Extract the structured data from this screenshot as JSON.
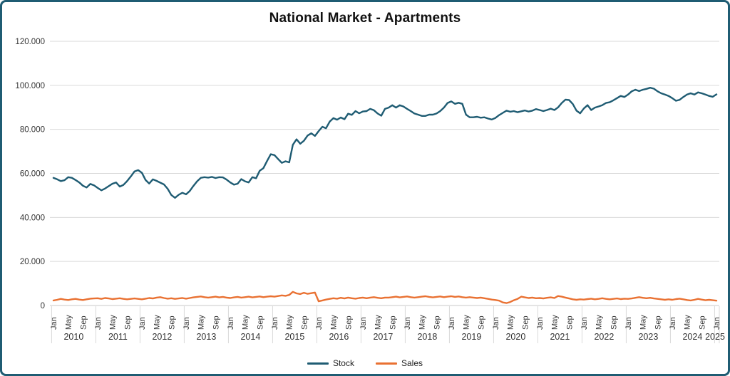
{
  "chart_data": {
    "type": "line",
    "title": "National Market - Apartments",
    "xlabel": "",
    "ylabel": "",
    "ylim": [
      0,
      120000
    ],
    "grid": true,
    "legend_position": "bottom",
    "x_axis": {
      "start": "Jan 2010",
      "end": "Jan 2025",
      "tick_months": [
        "Jan",
        "May",
        "Sep"
      ],
      "months_per_tick": 4,
      "final_tick": "Jan"
    },
    "years": [
      "2010",
      "2011",
      "2012",
      "2013",
      "2014",
      "2015",
      "2016",
      "2017",
      "2018",
      "2019",
      "2020",
      "2021",
      "2022",
      "2023",
      "2024",
      "2025"
    ],
    "y_ticks": [
      {
        "value": 0,
        "label": "0"
      },
      {
        "value": 20000,
        "label": "20.000"
      },
      {
        "value": 40000,
        "label": "40.000"
      },
      {
        "value": 60000,
        "label": "60.000"
      },
      {
        "value": 80000,
        "label": "80.000"
      },
      {
        "value": 100000,
        "label": "100.000"
      },
      {
        "value": 120000,
        "label": "120.000"
      }
    ],
    "colors": {
      "grid": "#d9d9d9",
      "axis": "#c9c9c9",
      "frame_border": "#1f5c73"
    },
    "series": [
      {
        "name": "Stock",
        "color": "#1f5c73",
        "values": [
          58000,
          57300,
          56500,
          56900,
          58300,
          58000,
          57000,
          55900,
          54400,
          53600,
          55200,
          54600,
          53400,
          52300,
          53100,
          54200,
          55300,
          55900,
          54000,
          54800,
          56500,
          58600,
          60900,
          61500,
          60300,
          57000,
          55400,
          57300,
          56600,
          55800,
          55000,
          53000,
          50200,
          48900,
          50300,
          51200,
          50500,
          52000,
          54300,
          56400,
          58000,
          58300,
          58100,
          58400,
          57900,
          58300,
          58200,
          57200,
          55900,
          54900,
          55300,
          57400,
          56400,
          55900,
          58300,
          57800,
          61200,
          62400,
          65700,
          68700,
          68300,
          66500,
          64800,
          65500,
          65000,
          73000,
          75500,
          73500,
          74800,
          77200,
          78200,
          77000,
          79200,
          81200,
          80500,
          83500,
          85100,
          84400,
          85400,
          84600,
          87100,
          86600,
          88300,
          87300,
          88100,
          88300,
          89300,
          88700,
          87200,
          86200,
          89300,
          89900,
          91000,
          89900,
          91000,
          90400,
          89300,
          88300,
          87200,
          86700,
          86100,
          86100,
          86700,
          86700,
          87200,
          88300,
          89900,
          92000,
          92700,
          91600,
          92100,
          91600,
          86700,
          85500,
          85500,
          85700,
          85300,
          85500,
          84900,
          84500,
          85200,
          86500,
          87500,
          88500,
          88000,
          88300,
          87800,
          88200,
          88600,
          88100,
          88500,
          89200,
          88800,
          88300,
          88800,
          89400,
          88800,
          90000,
          92000,
          93500,
          93300,
          91500,
          88500,
          87300,
          89500,
          91000,
          88800,
          89900,
          90400,
          91000,
          92000,
          92300,
          93200,
          94200,
          95200,
          94700,
          95800,
          97300,
          98000,
          97400,
          98000,
          98400,
          98900,
          98500,
          97300,
          96400,
          95800,
          95200,
          94200,
          93000,
          93400,
          94700,
          95800,
          96400,
          95800,
          96800,
          96400,
          95800,
          95200,
          94800,
          95900
        ]
      },
      {
        "name": "Sales",
        "color": "#e97132",
        "values": [
          2300,
          2600,
          3000,
          2700,
          2500,
          2800,
          3000,
          2700,
          2500,
          2800,
          3100,
          3200,
          3300,
          3000,
          3400,
          3200,
          2900,
          3100,
          3300,
          3000,
          2800,
          3000,
          3200,
          3000,
          2800,
          3100,
          3400,
          3200,
          3600,
          3800,
          3400,
          3100,
          3300,
          3000,
          3200,
          3400,
          3100,
          3400,
          3700,
          3900,
          4100,
          3800,
          3600,
          3800,
          4000,
          3700,
          3900,
          3600,
          3400,
          3700,
          3900,
          3600,
          3800,
          4000,
          3700,
          3900,
          4100,
          3800,
          4000,
          4200,
          4000,
          4300,
          4600,
          4400,
          4800,
          6200,
          5500,
          5200,
          5800,
          5300,
          5600,
          5900,
          1900,
          2300,
          2700,
          3000,
          3300,
          3100,
          3500,
          3200,
          3600,
          3300,
          3100,
          3400,
          3600,
          3300,
          3600,
          3800,
          3500,
          3300,
          3600,
          3600,
          3800,
          4000,
          3700,
          3900,
          4100,
          3800,
          3600,
          3800,
          4000,
          4200,
          3900,
          3700,
          3900,
          4100,
          3800,
          4000,
          4200,
          3900,
          4100,
          3800,
          3600,
          3800,
          3600,
          3400,
          3600,
          3300,
          3000,
          2700,
          2500,
          2200,
          1400,
          1100,
          1600,
          2400,
          3000,
          4000,
          3700,
          3400,
          3600,
          3300,
          3400,
          3200,
          3500,
          3700,
          3400,
          4300,
          4000,
          3600,
          3200,
          2800,
          2600,
          2800,
          2700,
          2900,
          3100,
          2800,
          3000,
          3300,
          3000,
          2800,
          3000,
          3200,
          2900,
          3100,
          3000,
          3200,
          3500,
          3800,
          3500,
          3300,
          3500,
          3200,
          3000,
          2800,
          2600,
          2800,
          2600,
          2900,
          3100,
          2800,
          2500,
          2300,
          2600,
          3000,
          2700,
          2400,
          2600,
          2400,
          2200
        ]
      }
    ]
  },
  "legend": {
    "stock_label": "Stock",
    "sales_label": "Sales"
  }
}
